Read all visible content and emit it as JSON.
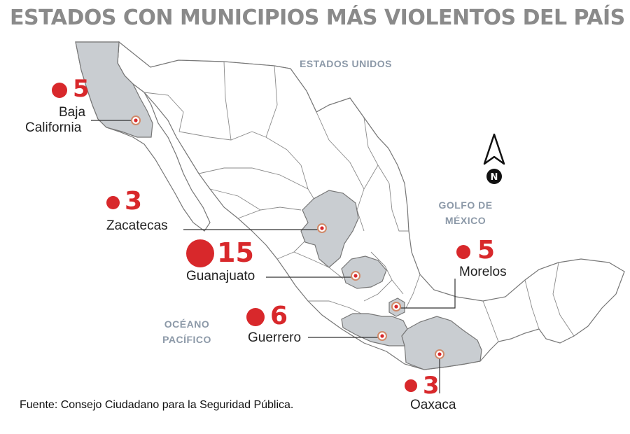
{
  "title": "ESTADOS CON MUNICIPIOS MÁS VIOLENTOS DEL PAÍS",
  "geo_labels": {
    "usa": "ESTADOS UNIDOS",
    "gulf_line1": "GOLFO DE",
    "gulf_line2": "MÉXICO",
    "pacific_line1": "OCÉANO",
    "pacific_line2": "PACÍFICO"
  },
  "compass_letter": "N",
  "states": [
    {
      "name_line1": "Baja",
      "name_line2": "California",
      "count": "5"
    },
    {
      "name": "Zacatecas",
      "count": "3"
    },
    {
      "name": "Guanajuato",
      "count": "15"
    },
    {
      "name": "Morelos",
      "count": "5"
    },
    {
      "name": "Guerrero",
      "count": "6"
    },
    {
      "name": "Oaxaca",
      "count": "3"
    }
  ],
  "source": "Fuente: Consejo Ciudadano para la Seguridad Pública.",
  "colors": {
    "accent_red": "#d8282b",
    "highlight_state": "#c9cdd1",
    "map_fill": "#ffffff",
    "map_stroke": "#777777",
    "title_gray": "#8a8a8a",
    "label_blue": "#8c99a8"
  }
}
